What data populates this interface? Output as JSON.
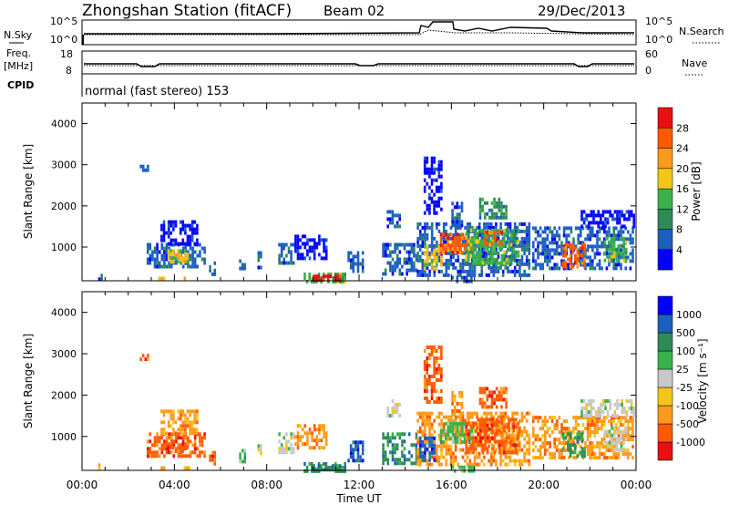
{
  "header": {
    "station": "Zhongshan Station (fitACF)",
    "beam": "Beam 02",
    "date": "29/Dec/2013"
  },
  "noise_panel": {
    "left_label": "N.Sky",
    "left_ticks": [
      "10^5",
      "10^0"
    ],
    "right_label": "N.Search",
    "right_ticks": [
      "10^5",
      "10^0"
    ]
  },
  "freq_panel": {
    "left_label_1": "Freq.",
    "left_label_2": "[MHz]",
    "left_ticks": [
      "18",
      "8"
    ],
    "right_label": "Nave",
    "right_ticks": [
      "60",
      "0"
    ]
  },
  "cpid": {
    "label": "CPID",
    "text": "normal (fast stereo) 153"
  },
  "colors": {
    "power": [
      "#0000ff",
      "#1d5fbf",
      "#2e8b57",
      "#37b34a",
      "#f5c518",
      "#ff9a1a",
      "#ff5a00",
      "#e81010"
    ],
    "velocity": [
      "#e81010",
      "#ff5a00",
      "#ff9a1a",
      "#f5c518",
      "#c8c8c8",
      "#37b34a",
      "#2e8b57",
      "#1d5fbf",
      "#0000ff"
    ]
  },
  "chart_data": [
    {
      "type": "heatmap",
      "name": "power",
      "xlabel": "",
      "ylabel": "Slant Range [km]",
      "x_range_hours": [
        0,
        24
      ],
      "ylim": [
        180,
        4500
      ],
      "y_ticks": [
        "1000",
        "2000",
        "3000",
        "4000"
      ],
      "colorbar": {
        "label": "Power [dB]",
        "tick_labels": [
          "4",
          "8",
          "12",
          "16",
          "20",
          "24",
          "28"
        ],
        "range": [
          0,
          32
        ]
      },
      "patches": [
        {
          "t": [
            2.8,
            5.3
          ],
          "r": [
            500,
            1100
          ],
          "level": 1
        },
        {
          "t": [
            3.4,
            5.0
          ],
          "r": [
            1100,
            1650
          ],
          "level": 0
        },
        {
          "t": [
            3.7,
            4.6
          ],
          "r": [
            600,
            950
          ],
          "level": 4
        },
        {
          "t": [
            3.9,
            4.3
          ],
          "r": [
            700,
            850
          ],
          "level": 5
        },
        {
          "t": [
            2.5,
            2.9
          ],
          "r": [
            2850,
            3000
          ],
          "level": 1
        },
        {
          "t": [
            5.5,
            5.8
          ],
          "r": [
            350,
            650
          ],
          "level": 1
        },
        {
          "t": [
            6.8,
            7.1
          ],
          "r": [
            400,
            700
          ],
          "level": 1
        },
        {
          "t": [
            7.6,
            7.8
          ],
          "r": [
            500,
            900
          ],
          "level": 1
        },
        {
          "t": [
            8.5,
            9.2
          ],
          "r": [
            600,
            1100
          ],
          "level": 1
        },
        {
          "t": [
            9.2,
            10.6
          ],
          "r": [
            700,
            1300
          ],
          "level": 0
        },
        {
          "t": [
            9.6,
            11.4
          ],
          "r": [
            200,
            380
          ],
          "level": 3
        },
        {
          "t": [
            10.0,
            11.2
          ],
          "r": [
            230,
            330
          ],
          "level": 7
        },
        {
          "t": [
            11.5,
            12.2
          ],
          "r": [
            400,
            900
          ],
          "level": 1
        },
        {
          "t": [
            13.0,
            14.5
          ],
          "r": [
            350,
            1100
          ],
          "level": 1
        },
        {
          "t": [
            13.2,
            13.8
          ],
          "r": [
            1500,
            1900
          ],
          "level": 1
        },
        {
          "t": [
            14.5,
            19.4
          ],
          "r": [
            350,
            1600
          ],
          "level": 1
        },
        {
          "t": [
            14.8,
            15.6
          ],
          "r": [
            450,
            1050
          ],
          "level": 4
        },
        {
          "t": [
            15.5,
            16.9
          ],
          "r": [
            850,
            1350
          ],
          "level": 6
        },
        {
          "t": [
            16.6,
            18.9
          ],
          "r": [
            600,
            1450
          ],
          "level": 3
        },
        {
          "t": [
            17.3,
            18.2
          ],
          "r": [
            1100,
            1400
          ],
          "level": 6
        },
        {
          "t": [
            14.8,
            15.6
          ],
          "r": [
            1800,
            3200
          ],
          "level": 0
        },
        {
          "t": [
            16.0,
            16.5
          ],
          "r": [
            1500,
            2100
          ],
          "level": 1
        },
        {
          "t": [
            17.2,
            18.4
          ],
          "r": [
            1700,
            2200
          ],
          "level": 2
        },
        {
          "t": [
            19.5,
            23.9
          ],
          "r": [
            450,
            1500
          ],
          "level": 1
        },
        {
          "t": [
            20.8,
            21.8
          ],
          "r": [
            500,
            1100
          ],
          "level": 6
        },
        {
          "t": [
            22.6,
            23.6
          ],
          "r": [
            700,
            1250
          ],
          "level": 3
        },
        {
          "t": [
            21.6,
            23.9
          ],
          "r": [
            1500,
            1900
          ],
          "level": 0
        },
        {
          "t": [
            0.7,
            0.9
          ],
          "r": [
            200,
            350
          ],
          "level": 1
        },
        {
          "t": [
            3.3,
            3.6
          ],
          "r": [
            200,
            280
          ],
          "level": 4
        },
        {
          "t": [
            4.4,
            4.7
          ],
          "r": [
            200,
            280
          ],
          "level": 4
        },
        {
          "t": [
            16.0,
            17.0
          ],
          "r": [
            200,
            300
          ],
          "level": 1
        }
      ]
    },
    {
      "type": "heatmap",
      "name": "velocity",
      "xlabel": "Time UT",
      "ylabel": "Slant Range [km]",
      "x_range_hours": [
        0,
        24
      ],
      "x_ticks": [
        "00:00",
        "04:00",
        "08:00",
        "12:00",
        "16:00",
        "20:00",
        "00:00"
      ],
      "ylim": [
        180,
        4500
      ],
      "y_ticks": [
        "1000",
        "2000",
        "3000",
        "4000"
      ],
      "colorbar": {
        "label": "Velocity [m s⁻¹]",
        "tick_labels": [
          "1000",
          "500",
          "100",
          "25",
          "-25",
          "-100",
          "-500",
          "-1000"
        ]
      },
      "patches": [
        {
          "t": [
            2.8,
            5.3
          ],
          "r": [
            500,
            1100
          ],
          "level": 1
        },
        {
          "t": [
            3.4,
            5.0
          ],
          "r": [
            1100,
            1650
          ],
          "level": 2
        },
        {
          "t": [
            3.7,
            4.6
          ],
          "r": [
            600,
            950
          ],
          "level": 1
        },
        {
          "t": [
            2.5,
            2.9
          ],
          "r": [
            2850,
            3000
          ],
          "level": 1
        },
        {
          "t": [
            5.5,
            5.8
          ],
          "r": [
            350,
            650
          ],
          "level": 1
        },
        {
          "t": [
            6.8,
            7.1
          ],
          "r": [
            400,
            700
          ],
          "level": 5
        },
        {
          "t": [
            7.6,
            7.8
          ],
          "r": [
            500,
            900
          ],
          "level": 4
        },
        {
          "t": [
            8.5,
            9.2
          ],
          "r": [
            600,
            1100
          ],
          "level": 4
        },
        {
          "t": [
            9.2,
            10.6
          ],
          "r": [
            700,
            1300
          ],
          "level": 2
        },
        {
          "t": [
            9.6,
            11.4
          ],
          "r": [
            200,
            380
          ],
          "level": 6
        },
        {
          "t": [
            10.0,
            11.2
          ],
          "r": [
            230,
            330
          ],
          "level": 6
        },
        {
          "t": [
            11.5,
            12.2
          ],
          "r": [
            400,
            900
          ],
          "level": 7
        },
        {
          "t": [
            13.0,
            14.5
          ],
          "r": [
            350,
            1100
          ],
          "level": 6
        },
        {
          "t": [
            13.2,
            13.8
          ],
          "r": [
            1500,
            1900
          ],
          "level": 4
        },
        {
          "t": [
            14.5,
            19.4
          ],
          "r": [
            350,
            1600
          ],
          "level": 2
        },
        {
          "t": [
            14.6,
            15.3
          ],
          "r": [
            400,
            1000
          ],
          "level": 7
        },
        {
          "t": [
            15.5,
            16.9
          ],
          "r": [
            850,
            1350
          ],
          "level": 5
        },
        {
          "t": [
            16.6,
            18.9
          ],
          "r": [
            600,
            1450
          ],
          "level": 1
        },
        {
          "t": [
            17.3,
            18.2
          ],
          "r": [
            1100,
            1400
          ],
          "level": 1
        },
        {
          "t": [
            14.8,
            15.6
          ],
          "r": [
            1800,
            3200
          ],
          "level": 1
        },
        {
          "t": [
            16.0,
            16.5
          ],
          "r": [
            1500,
            2100
          ],
          "level": 2
        },
        {
          "t": [
            17.2,
            18.4
          ],
          "r": [
            1700,
            2200
          ],
          "level": 1
        },
        {
          "t": [
            19.5,
            23.9
          ],
          "r": [
            450,
            1500
          ],
          "level": 2
        },
        {
          "t": [
            20.8,
            21.8
          ],
          "r": [
            500,
            1100
          ],
          "level": 6
        },
        {
          "t": [
            22.6,
            23.6
          ],
          "r": [
            700,
            1250
          ],
          "level": 4
        },
        {
          "t": [
            21.6,
            23.9
          ],
          "r": [
            1500,
            1900
          ],
          "level": 4
        },
        {
          "t": [
            0.7,
            0.9
          ],
          "r": [
            200,
            350
          ],
          "level": 2
        },
        {
          "t": [
            3.3,
            3.6
          ],
          "r": [
            200,
            280
          ],
          "level": 2
        },
        {
          "t": [
            4.4,
            4.7
          ],
          "r": [
            200,
            280
          ],
          "level": 2
        },
        {
          "t": [
            16.0,
            17.0
          ],
          "r": [
            200,
            300
          ],
          "level": 5
        }
      ]
    }
  ]
}
